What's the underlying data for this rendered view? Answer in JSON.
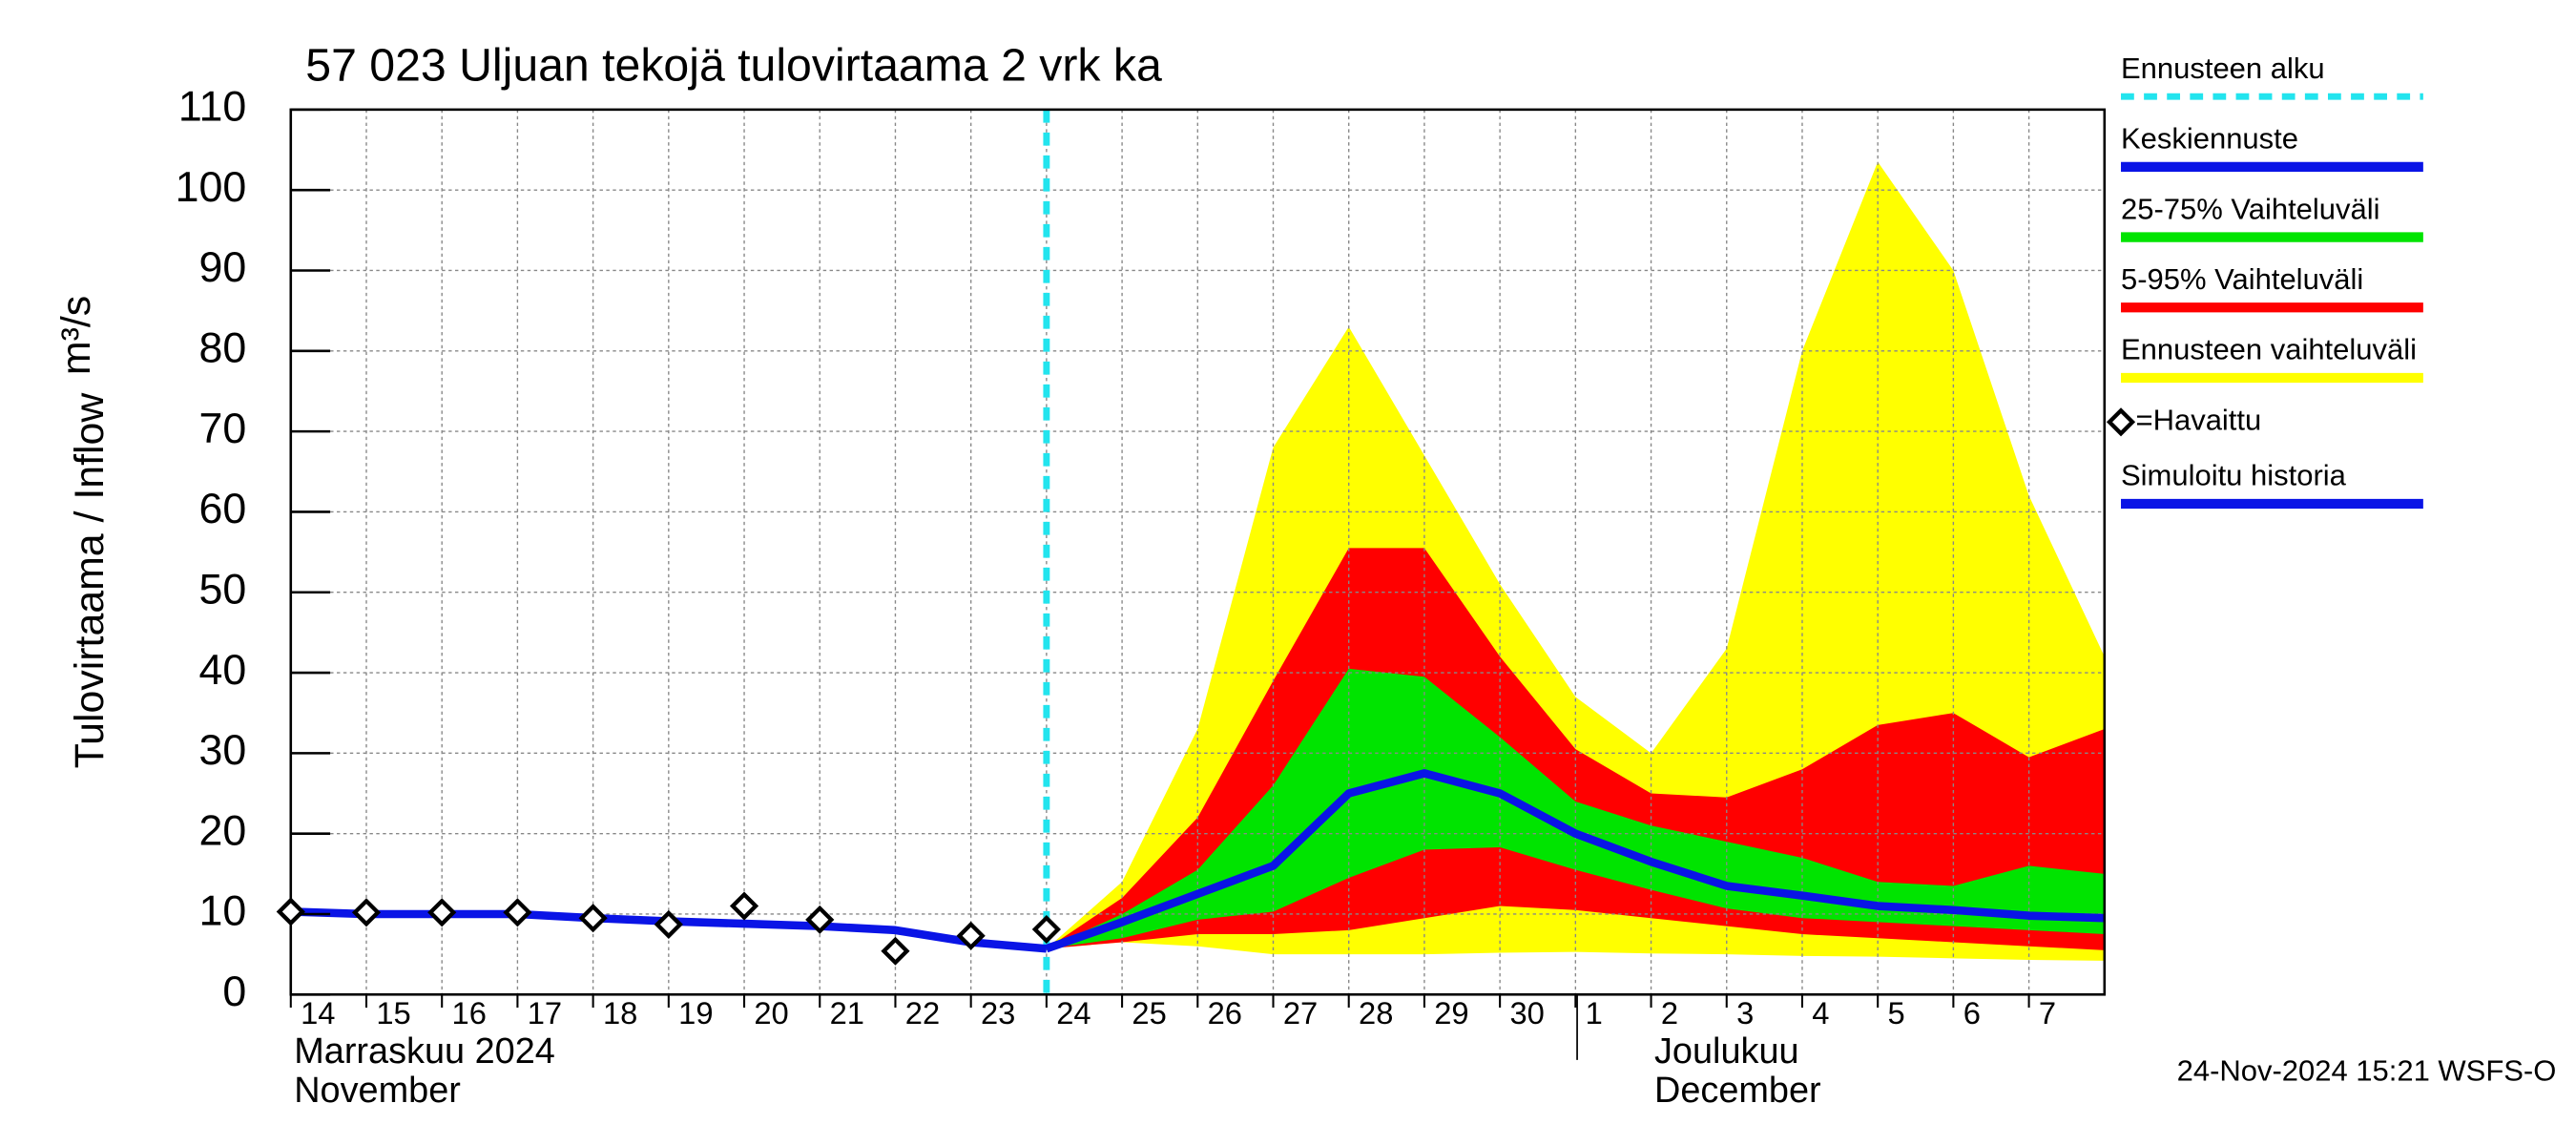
{
  "chart_data": {
    "type": "line",
    "title": "57 023 Uljuan tekojä tulovirtaama 2 vrk ka",
    "ylabel": "Tulovirtaama / Inflow",
    "yunit": "m³/s",
    "month_labels": [
      "Marraskuu 2024",
      "November",
      "Joulukuu",
      "December"
    ],
    "footer": "24-Nov-2024 15:21 WSFS-O",
    "xlim": [
      "2024-11-14",
      "2024-12-08"
    ],
    "xticks": [
      {
        "value": "2024-11-14",
        "label": "14"
      },
      {
        "value": "2024-11-15",
        "label": "15"
      },
      {
        "value": "2024-11-16",
        "label": "16"
      },
      {
        "value": "2024-11-17",
        "label": "17"
      },
      {
        "value": "2024-11-18",
        "label": "18"
      },
      {
        "value": "2024-11-19",
        "label": "19"
      },
      {
        "value": "2024-11-20",
        "label": "20"
      },
      {
        "value": "2024-11-21",
        "label": "21"
      },
      {
        "value": "2024-11-22",
        "label": "22"
      },
      {
        "value": "2024-11-23",
        "label": "23"
      },
      {
        "value": "2024-11-24",
        "label": "24"
      },
      {
        "value": "2024-11-25",
        "label": "25"
      },
      {
        "value": "2024-11-26",
        "label": "26"
      },
      {
        "value": "2024-11-27",
        "label": "27"
      },
      {
        "value": "2024-11-28",
        "label": "28"
      },
      {
        "value": "2024-11-29",
        "label": "29"
      },
      {
        "value": "2024-11-30",
        "label": "30"
      },
      {
        "value": "2024-12-01",
        "label": "1"
      },
      {
        "value": "2024-12-02",
        "label": "2"
      },
      {
        "value": "2024-12-03",
        "label": "3"
      },
      {
        "value": "2024-12-04",
        "label": "4"
      },
      {
        "value": "2024-12-05",
        "label": "5"
      },
      {
        "value": "2024-12-06",
        "label": "6"
      },
      {
        "value": "2024-12-07",
        "label": "7"
      }
    ],
    "ylim": [
      0,
      110
    ],
    "yticks": [
      0,
      10,
      20,
      30,
      40,
      50,
      60,
      70,
      80,
      90,
      100,
      110
    ],
    "grid": true,
    "legend": "right",
    "series": [
      {
        "name": "Ennusteen alku",
        "kind": "vline",
        "color": "#22e4ee",
        "x": "2024-11-24"
      },
      {
        "name": "Keskiennuste",
        "kind": "line",
        "color": "#0a14e6",
        "x": [
          "2024-11-24",
          "2024-11-25",
          "2024-11-26",
          "2024-11-27",
          "2024-11-28",
          "2024-11-29",
          "2024-11-30",
          "2024-12-01",
          "2024-12-02",
          "2024-12-03",
          "2024-12-04",
          "2024-12-05",
          "2024-12-06",
          "2024-12-07",
          "2024-12-08"
        ],
        "values": [
          5.7,
          9,
          12.5,
          16,
          25,
          27.5,
          25,
          20,
          16.5,
          13.5,
          12.3,
          11,
          10.5,
          9.8,
          9.5
        ]
      },
      {
        "name": "25-75% Vaihteluväli",
        "kind": "band",
        "color": "#00e400",
        "x": [
          "2024-11-24",
          "2024-11-25",
          "2024-11-26",
          "2024-11-27",
          "2024-11-28",
          "2024-11-29",
          "2024-11-30",
          "2024-12-01",
          "2024-12-02",
          "2024-12-03",
          "2024-12-04",
          "2024-12-05",
          "2024-12-06",
          "2024-12-07",
          "2024-12-08"
        ],
        "low": [
          5.7,
          7,
          9.3,
          10.3,
          14.5,
          18,
          18.3,
          15.5,
          13,
          10.7,
          9.5,
          9,
          8.5,
          8,
          7.5
        ],
        "high": [
          5.7,
          10,
          15.5,
          26,
          40.5,
          39.5,
          32,
          24,
          21,
          19,
          17,
          14,
          13.5,
          16,
          15
        ]
      },
      {
        "name": "5-95% Vaihteluväli",
        "kind": "band",
        "color": "#ff0000",
        "x": [
          "2024-11-24",
          "2024-11-25",
          "2024-11-26",
          "2024-11-27",
          "2024-11-28",
          "2024-11-29",
          "2024-11-30",
          "2024-12-01",
          "2024-12-02",
          "2024-12-03",
          "2024-12-04",
          "2024-12-05",
          "2024-12-06",
          "2024-12-07",
          "2024-12-08"
        ],
        "low": [
          5.7,
          6.5,
          7.5,
          7.5,
          8,
          9.5,
          11,
          10.5,
          9.5,
          8.5,
          7.5,
          7,
          6.5,
          6,
          5.5
        ],
        "high": [
          5.7,
          12,
          22,
          39,
          55.5,
          55.5,
          42,
          30.5,
          25,
          24.5,
          28,
          33.5,
          35,
          29.5,
          33
        ]
      },
      {
        "name": "Ennusteen vaihteluväli",
        "kind": "band",
        "color": "#ffff00",
        "x": [
          "2024-11-24",
          "2024-11-25",
          "2024-11-26",
          "2024-11-27",
          "2024-11-28",
          "2024-11-29",
          "2024-11-30",
          "2024-12-01",
          "2024-12-02",
          "2024-12-03",
          "2024-12-04",
          "2024-12-05",
          "2024-12-06",
          "2024-12-07",
          "2024-12-08"
        ],
        "low": [
          5.7,
          6.5,
          6,
          5,
          5,
          5,
          5.2,
          5.3,
          5.1,
          5,
          4.8,
          4.7,
          4.5,
          4.3,
          4.2
        ],
        "high": [
          5.7,
          14,
          33,
          68,
          83,
          67,
          51,
          37,
          30,
          43,
          80,
          103.5,
          90,
          62,
          42
        ]
      },
      {
        "name": "=Havaittu",
        "kind": "points",
        "color": "#000000",
        "x": [
          "2024-11-14",
          "2024-11-15",
          "2024-11-16",
          "2024-11-17",
          "2024-11-18",
          "2024-11-19",
          "2024-11-20",
          "2024-11-21",
          "2024-11-22",
          "2024-11-23",
          "2024-11-24"
        ],
        "values": [
          10.3,
          10.2,
          10.2,
          10.2,
          9.5,
          8.7,
          11,
          9.3,
          5.4,
          7.3,
          8.1
        ]
      },
      {
        "name": "Simuloitu historia",
        "kind": "line",
        "color": "#0a14e6",
        "x": [
          "2024-11-14",
          "2024-11-15",
          "2024-11-16",
          "2024-11-17",
          "2024-11-18",
          "2024-11-19",
          "2024-11-20",
          "2024-11-21",
          "2024-11-22",
          "2024-11-23",
          "2024-11-24"
        ],
        "values": [
          10.3,
          10,
          10,
          10,
          9.5,
          9.1,
          8.8,
          8.5,
          8,
          6.5,
          5.7
        ]
      }
    ]
  }
}
